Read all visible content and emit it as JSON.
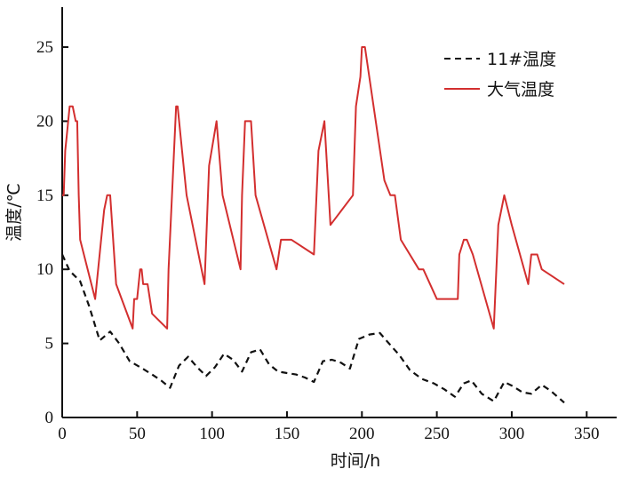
{
  "chart_data": {
    "type": "line",
    "title": "",
    "xlabel": "时间/h",
    "ylabel": "温度/℃",
    "xlim": [
      0,
      370
    ],
    "ylim": [
      0,
      27.7
    ],
    "x_ticks": [
      0,
      50,
      100,
      150,
      200,
      250,
      300,
      350
    ],
    "y_ticks": [
      0,
      5,
      10,
      15,
      20,
      25
    ],
    "grid": false,
    "legend_position": "top-right",
    "series": [
      {
        "name": "11#温度",
        "color": "#111111",
        "line_style": "dashed",
        "x": [
          0,
          5,
          12,
          18,
          25,
          32,
          38,
          45,
          52,
          60,
          66,
          72,
          78,
          84,
          90,
          96,
          102,
          108,
          114,
          120,
          126,
          132,
          138,
          144,
          150,
          156,
          162,
          168,
          174,
          180,
          186,
          192,
          198,
          205,
          212,
          218,
          225,
          232,
          240,
          248,
          255,
          262,
          268,
          273,
          280,
          288,
          295,
          301,
          307,
          313,
          320,
          326,
          335
        ],
        "y": [
          11,
          9.9,
          9.2,
          7.5,
          5.2,
          5.8,
          5.0,
          3.8,
          3.4,
          2.9,
          2.5,
          2.0,
          3.5,
          4.1,
          3.4,
          2.8,
          3.4,
          4.3,
          3.9,
          3.1,
          4.4,
          4.6,
          3.6,
          3.1,
          3.0,
          2.9,
          2.7,
          2.4,
          3.8,
          3.9,
          3.7,
          3.3,
          5.3,
          5.6,
          5.7,
          5.0,
          4.2,
          3.2,
          2.6,
          2.3,
          1.9,
          1.4,
          2.3,
          2.5,
          1.6,
          1.1,
          2.4,
          2.1,
          1.7,
          1.6,
          2.2,
          1.8,
          1.0
        ]
      },
      {
        "name": "大气温度",
        "color": "#d32f2f",
        "line_style": "solid",
        "x": [
          0,
          1,
          2,
          3,
          5,
          7,
          9,
          10,
          11,
          12,
          22,
          26,
          28,
          30,
          32,
          36,
          47,
          48,
          50,
          52,
          53,
          54,
          57,
          60,
          70,
          71,
          76,
          77,
          80,
          83,
          95,
          98,
          103,
          107,
          119,
          120,
          122,
          126,
          129,
          143,
          146,
          153,
          168,
          171,
          175,
          179,
          194,
          195,
          196,
          199,
          200,
          202,
          215,
          219,
          222,
          226,
          238,
          241,
          250,
          264,
          265,
          268,
          270,
          274,
          288,
          291,
          295,
          300,
          311,
          313,
          317,
          320,
          335
        ],
        "y": [
          15,
          15,
          18,
          19,
          21,
          21,
          20,
          20,
          15,
          12,
          8,
          12,
          14,
          15,
          15,
          9,
          6,
          8,
          8,
          10,
          10,
          9,
          9,
          7,
          6,
          10,
          21,
          21,
          18,
          15,
          9,
          17,
          20,
          15,
          10,
          15,
          20,
          20,
          15,
          10,
          12,
          12,
          11,
          18,
          20,
          13,
          15,
          18,
          21,
          23,
          25,
          25,
          16,
          15,
          15,
          12,
          10,
          10,
          8,
          8,
          11,
          12,
          12,
          11,
          6,
          13,
          15,
          13,
          9,
          11,
          11,
          10,
          9
        ]
      }
    ]
  }
}
